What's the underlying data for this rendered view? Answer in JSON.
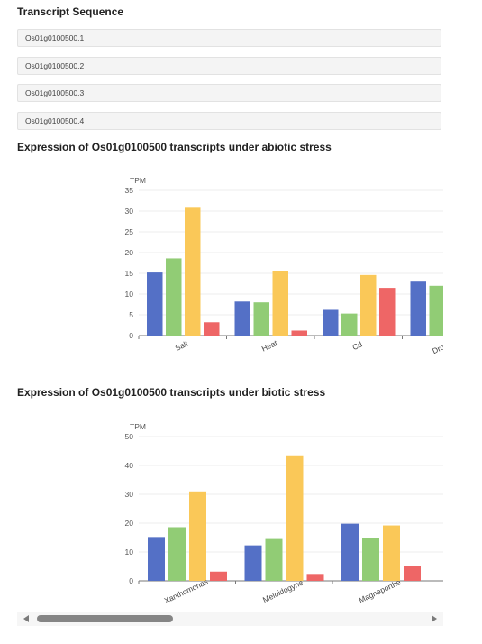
{
  "section_title": "Transcript Sequence",
  "transcripts": [
    "Os01g0100500.1",
    "Os01g0100500.2",
    "Os01g0100500.3",
    "Os01g0100500.4"
  ],
  "colors": [
    "#5470c6",
    "#91cc75",
    "#fac858",
    "#ee6666"
  ],
  "chart_data": [
    {
      "type": "bar",
      "title": "Expression of Os01g0100500 transcripts under abiotic stress",
      "ylabel": "TPM",
      "ylim": [
        0,
        35
      ],
      "yticks": [
        0,
        5,
        10,
        15,
        20,
        25,
        30,
        35
      ],
      "categories": [
        "Salt",
        "Heat",
        "Cd",
        "Drought"
      ],
      "series": [
        {
          "values": [
            15.2,
            8.2,
            6.2,
            13.0
          ]
        },
        {
          "values": [
            18.6,
            8.0,
            5.3,
            12.0
          ]
        },
        {
          "values": [
            30.8,
            15.6,
            14.6,
            null
          ]
        },
        {
          "values": [
            3.2,
            1.2,
            11.5,
            null
          ]
        }
      ]
    },
    {
      "type": "bar",
      "title": "Expression of Os01g0100500 transcripts under biotic stress",
      "ylabel": "TPM",
      "ylim": [
        0,
        50
      ],
      "yticks": [
        0,
        10,
        20,
        30,
        40,
        50
      ],
      "categories": [
        "Xanthomonas",
        "Meloidogyne",
        "Magnaporthe"
      ],
      "series": [
        {
          "values": [
            15.2,
            12.3,
            19.8
          ]
        },
        {
          "values": [
            18.6,
            14.5,
            15.0
          ]
        },
        {
          "values": [
            31.0,
            43.2,
            19.2
          ]
        },
        {
          "values": [
            3.2,
            2.4,
            5.2
          ]
        }
      ]
    }
  ]
}
